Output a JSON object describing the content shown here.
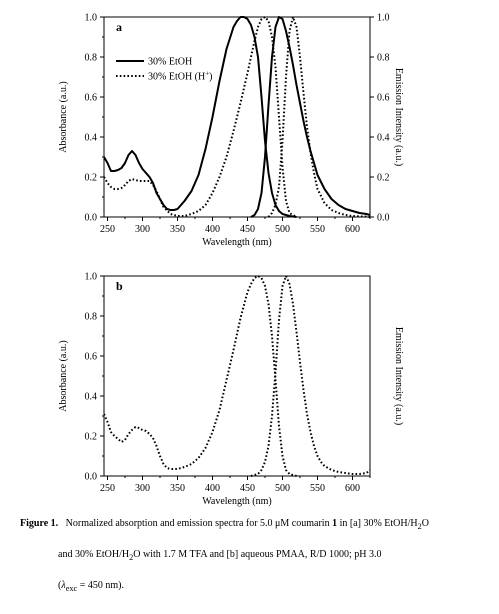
{
  "chart_data": [
    {
      "type": "line",
      "panel_label": "a",
      "xlabel": "Wavelength (nm)",
      "ylabel_left": "Absorbance (a.u.)",
      "ylabel_right": "Emission Intensity (a.u.)",
      "xlim": [
        245,
        625
      ],
      "ylim": [
        0,
        1.0
      ],
      "xticks": [
        "250",
        "300",
        "350",
        "400",
        "450",
        "500",
        "550",
        "600"
      ],
      "yticks_left": [
        "0.0",
        "0.2",
        "0.4",
        "0.6",
        "0.8",
        "1.0"
      ],
      "yticks_right": [
        "0.0",
        "0.2",
        "0.4",
        "0.6",
        "0.8",
        "1.0"
      ],
      "legend": {
        "placement": "upper-left",
        "entries": [
          {
            "label": "30% EtOH",
            "style": "solid"
          },
          {
            "label_main": "30% EtOH (H",
            "label_sup": "+",
            "label_end": ")",
            "style": "dotted"
          }
        ]
      },
      "series": [
        {
          "style": "solid",
          "kind": "absorption",
          "x": [
            245,
            250,
            255,
            260,
            265,
            270,
            275,
            280,
            285,
            290,
            295,
            300,
            305,
            310,
            315,
            320,
            325,
            330,
            335,
            340,
            345,
            350,
            355,
            360,
            370,
            380,
            390,
            400,
            410,
            420,
            430,
            435,
            440,
            445,
            450,
            455,
            460,
            465,
            470,
            475,
            480,
            485,
            490,
            495,
            500,
            510,
            520
          ],
          "y": [
            0.3,
            0.27,
            0.23,
            0.23,
            0.235,
            0.245,
            0.27,
            0.31,
            0.33,
            0.31,
            0.27,
            0.24,
            0.22,
            0.2,
            0.17,
            0.12,
            0.09,
            0.06,
            0.04,
            0.035,
            0.035,
            0.04,
            0.06,
            0.08,
            0.13,
            0.21,
            0.34,
            0.5,
            0.68,
            0.84,
            0.95,
            0.98,
            1.0,
            1.0,
            0.99,
            0.96,
            0.9,
            0.8,
            0.6,
            0.38,
            0.22,
            0.12,
            0.06,
            0.03,
            0.015,
            0.005,
            0.0
          ]
        },
        {
          "style": "solid",
          "kind": "emission",
          "x": [
            455,
            460,
            465,
            470,
            475,
            480,
            485,
            490,
            495,
            500,
            505,
            510,
            515,
            520,
            525,
            530,
            535,
            540,
            545,
            550,
            560,
            570,
            580,
            590,
            600,
            610,
            620,
            625
          ],
          "y": [
            0.0,
            0.01,
            0.04,
            0.12,
            0.3,
            0.56,
            0.8,
            0.95,
            1.0,
            0.99,
            0.93,
            0.85,
            0.76,
            0.66,
            0.57,
            0.48,
            0.4,
            0.33,
            0.27,
            0.21,
            0.14,
            0.09,
            0.06,
            0.04,
            0.03,
            0.02,
            0.015,
            0.01
          ]
        },
        {
          "style": "dotted",
          "kind": "absorption",
          "x": [
            245,
            250,
            255,
            260,
            265,
            270,
            275,
            280,
            285,
            290,
            295,
            300,
            305,
            310,
            315,
            320,
            325,
            330,
            340,
            350,
            360,
            370,
            380,
            390,
            400,
            410,
            420,
            430,
            440,
            450,
            455,
            460,
            465,
            470,
            475,
            480,
            485,
            490,
            495,
            500,
            505,
            510,
            520
          ],
          "y": [
            0.2,
            0.17,
            0.15,
            0.14,
            0.14,
            0.145,
            0.16,
            0.18,
            0.19,
            0.185,
            0.18,
            0.18,
            0.18,
            0.18,
            0.16,
            0.13,
            0.09,
            0.05,
            0.015,
            0.005,
            0.005,
            0.015,
            0.03,
            0.06,
            0.12,
            0.2,
            0.3,
            0.43,
            0.57,
            0.72,
            0.8,
            0.88,
            0.95,
            0.99,
            1.0,
            0.98,
            0.9,
            0.75,
            0.5,
            0.25,
            0.08,
            0.02,
            0.0
          ]
        },
        {
          "style": "dotted",
          "kind": "emission",
          "x": [
            480,
            485,
            490,
            495,
            500,
            505,
            510,
            515,
            520,
            525,
            530,
            535,
            540,
            545,
            550,
            560,
            570,
            580,
            590,
            600,
            610,
            620,
            625
          ],
          "y": [
            0.0,
            0.02,
            0.06,
            0.15,
            0.38,
            0.7,
            0.93,
            1.0,
            0.95,
            0.8,
            0.62,
            0.45,
            0.32,
            0.22,
            0.14,
            0.07,
            0.035,
            0.02,
            0.01,
            0.005,
            0.003,
            0.002,
            0.0
          ]
        }
      ]
    },
    {
      "type": "line",
      "panel_label": "b",
      "xlabel": "Wavelength (nm)",
      "ylabel_left": "Absorbance (a.u.)",
      "ylabel_right": "Emission Intensity (a.u.)",
      "xlim": [
        245,
        625
      ],
      "ylim": [
        0,
        1.0
      ],
      "xticks": [
        "250",
        "300",
        "350",
        "400",
        "450",
        "500",
        "550",
        "600"
      ],
      "yticks_left": [
        "0.0",
        "0.2",
        "0.4",
        "0.6",
        "0.8",
        "1.0"
      ],
      "yticks_right": [],
      "series": [
        {
          "style": "dotted",
          "kind": "absorption",
          "x": [
            245,
            250,
            255,
            260,
            265,
            270,
            275,
            280,
            285,
            290,
            295,
            300,
            305,
            310,
            315,
            320,
            325,
            330,
            335,
            340,
            345,
            350,
            360,
            370,
            380,
            390,
            400,
            410,
            420,
            430,
            440,
            450,
            455,
            460,
            465,
            470,
            475,
            480,
            485,
            490,
            495,
            500,
            505,
            510,
            520
          ],
          "y": [
            0.31,
            0.27,
            0.22,
            0.2,
            0.185,
            0.17,
            0.18,
            0.21,
            0.23,
            0.245,
            0.24,
            0.23,
            0.225,
            0.21,
            0.19,
            0.15,
            0.1,
            0.06,
            0.04,
            0.035,
            0.035,
            0.035,
            0.045,
            0.06,
            0.09,
            0.14,
            0.22,
            0.33,
            0.48,
            0.63,
            0.79,
            0.92,
            0.96,
            0.99,
            1.0,
            0.99,
            0.95,
            0.86,
            0.7,
            0.48,
            0.25,
            0.1,
            0.03,
            0.01,
            0.0
          ]
        },
        {
          "style": "dotted",
          "kind": "emission",
          "x": [
            455,
            460,
            465,
            470,
            475,
            480,
            485,
            490,
            495,
            500,
            505,
            510,
            515,
            520,
            525,
            530,
            535,
            540,
            545,
            550,
            555,
            560,
            570,
            580,
            590,
            600,
            610,
            620,
            625
          ],
          "y": [
            0.0,
            0.005,
            0.01,
            0.03,
            0.07,
            0.15,
            0.3,
            0.52,
            0.78,
            0.95,
            1.0,
            0.96,
            0.86,
            0.72,
            0.57,
            0.43,
            0.31,
            0.22,
            0.15,
            0.1,
            0.07,
            0.05,
            0.03,
            0.02,
            0.015,
            0.01,
            0.01,
            0.015,
            0.03
          ]
        }
      ]
    }
  ],
  "caption": {
    "fig_label": "Figure 1.",
    "line1_text": "Normalized absorption and emission spectra for 5.0 μM coumarin",
    "line1_compound": "1",
    "line1_rest": "in [a] 30% EtOH/H",
    "line1_sub": "2",
    "line1_end": "O",
    "line2_text": "and 30% EtOH/H",
    "line2_sub": "2",
    "line2_rest": "O with 1.7 M TFA and [b] aqueous PMAA, R/D 1000; pH 3.0",
    "line3_open": "(",
    "line3_lambda": "λ",
    "line3_sub": "exc",
    "line3_rest": "= 450 nm)."
  }
}
